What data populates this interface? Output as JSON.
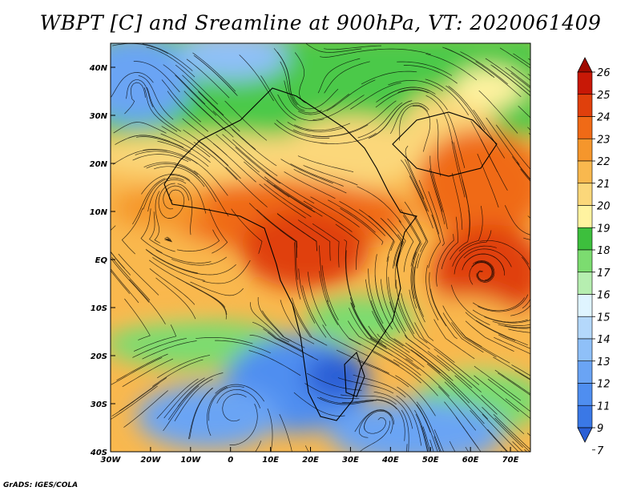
{
  "title": "WBPT [C] and Sreamline at 900hPa, VT: 2020061409",
  "credit": "GrADS: IGES/COLA",
  "map": {
    "lon_labels": [
      "30W",
      "20W",
      "10W",
      "0",
      "10E",
      "20E",
      "30E",
      "40E",
      "50E",
      "60E",
      "70E"
    ],
    "lat_labels": [
      "40N",
      "30N",
      "20N",
      "10N",
      "EQ",
      "10S",
      "20S",
      "30S",
      "40S"
    ],
    "lon_range": [
      -30,
      75
    ],
    "lat_range": [
      -40,
      45
    ]
  },
  "colorbar": {
    "labels": [
      "7",
      "9",
      "11",
      "12",
      "13",
      "14",
      "15",
      "16",
      "17",
      "18",
      "19",
      "20",
      "21",
      "22",
      "23",
      "24",
      "25",
      "26"
    ],
    "colors": [
      "#2a5fd6",
      "#3a78e6",
      "#4f8ef0",
      "#6aa4f4",
      "#8fc0f8",
      "#b4d8fb",
      "#dff4ff",
      "#b6eeb0",
      "#7cdc70",
      "#3dbf3d",
      "#fff3a0",
      "#fbd77a",
      "#f9b84e",
      "#f5962c",
      "#f06a16",
      "#e0400c",
      "#c81806",
      "#a00a00"
    ]
  }
}
